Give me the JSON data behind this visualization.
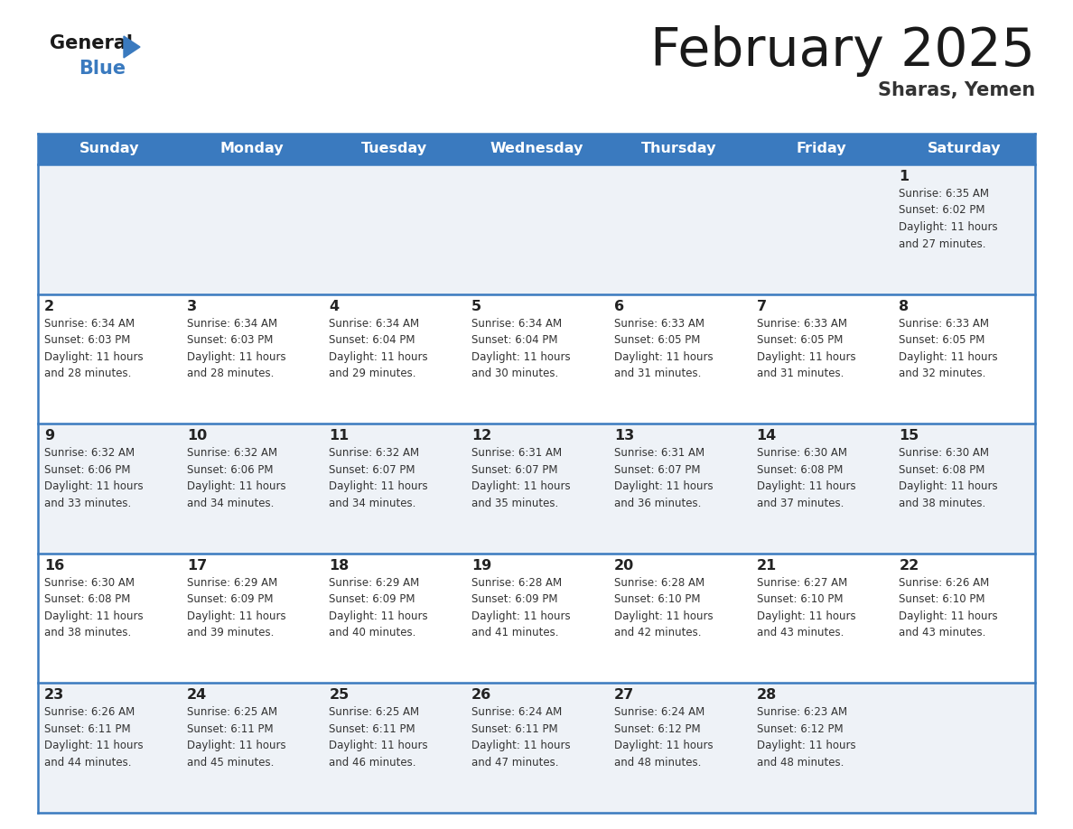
{
  "title": "February 2025",
  "subtitle": "Sharas, Yemen",
  "header_bg_color": "#3a7abf",
  "header_text_color": "#ffffff",
  "cell_bg_odd": "#eef2f7",
  "cell_bg_even": "#ffffff",
  "days_of_week": [
    "Sunday",
    "Monday",
    "Tuesday",
    "Wednesday",
    "Thursday",
    "Friday",
    "Saturday"
  ],
  "title_color": "#1a1a1a",
  "subtitle_color": "#333333",
  "day_num_color": "#222222",
  "cell_text_color": "#333333",
  "line_color": "#3a7abf",
  "logo_general_color": "#1a1a1a",
  "logo_blue_color": "#3a7abf",
  "logo_triangle_color": "#3a7abf",
  "calendar_data": [
    [
      {
        "day": null,
        "info": null
      },
      {
        "day": null,
        "info": null
      },
      {
        "day": null,
        "info": null
      },
      {
        "day": null,
        "info": null
      },
      {
        "day": null,
        "info": null
      },
      {
        "day": null,
        "info": null
      },
      {
        "day": 1,
        "info": "Sunrise: 6:35 AM\nSunset: 6:02 PM\nDaylight: 11 hours\nand 27 minutes."
      }
    ],
    [
      {
        "day": 2,
        "info": "Sunrise: 6:34 AM\nSunset: 6:03 PM\nDaylight: 11 hours\nand 28 minutes."
      },
      {
        "day": 3,
        "info": "Sunrise: 6:34 AM\nSunset: 6:03 PM\nDaylight: 11 hours\nand 28 minutes."
      },
      {
        "day": 4,
        "info": "Sunrise: 6:34 AM\nSunset: 6:04 PM\nDaylight: 11 hours\nand 29 minutes."
      },
      {
        "day": 5,
        "info": "Sunrise: 6:34 AM\nSunset: 6:04 PM\nDaylight: 11 hours\nand 30 minutes."
      },
      {
        "day": 6,
        "info": "Sunrise: 6:33 AM\nSunset: 6:05 PM\nDaylight: 11 hours\nand 31 minutes."
      },
      {
        "day": 7,
        "info": "Sunrise: 6:33 AM\nSunset: 6:05 PM\nDaylight: 11 hours\nand 31 minutes."
      },
      {
        "day": 8,
        "info": "Sunrise: 6:33 AM\nSunset: 6:05 PM\nDaylight: 11 hours\nand 32 minutes."
      }
    ],
    [
      {
        "day": 9,
        "info": "Sunrise: 6:32 AM\nSunset: 6:06 PM\nDaylight: 11 hours\nand 33 minutes."
      },
      {
        "day": 10,
        "info": "Sunrise: 6:32 AM\nSunset: 6:06 PM\nDaylight: 11 hours\nand 34 minutes."
      },
      {
        "day": 11,
        "info": "Sunrise: 6:32 AM\nSunset: 6:07 PM\nDaylight: 11 hours\nand 34 minutes."
      },
      {
        "day": 12,
        "info": "Sunrise: 6:31 AM\nSunset: 6:07 PM\nDaylight: 11 hours\nand 35 minutes."
      },
      {
        "day": 13,
        "info": "Sunrise: 6:31 AM\nSunset: 6:07 PM\nDaylight: 11 hours\nand 36 minutes."
      },
      {
        "day": 14,
        "info": "Sunrise: 6:30 AM\nSunset: 6:08 PM\nDaylight: 11 hours\nand 37 minutes."
      },
      {
        "day": 15,
        "info": "Sunrise: 6:30 AM\nSunset: 6:08 PM\nDaylight: 11 hours\nand 38 minutes."
      }
    ],
    [
      {
        "day": 16,
        "info": "Sunrise: 6:30 AM\nSunset: 6:08 PM\nDaylight: 11 hours\nand 38 minutes."
      },
      {
        "day": 17,
        "info": "Sunrise: 6:29 AM\nSunset: 6:09 PM\nDaylight: 11 hours\nand 39 minutes."
      },
      {
        "day": 18,
        "info": "Sunrise: 6:29 AM\nSunset: 6:09 PM\nDaylight: 11 hours\nand 40 minutes."
      },
      {
        "day": 19,
        "info": "Sunrise: 6:28 AM\nSunset: 6:09 PM\nDaylight: 11 hours\nand 41 minutes."
      },
      {
        "day": 20,
        "info": "Sunrise: 6:28 AM\nSunset: 6:10 PM\nDaylight: 11 hours\nand 42 minutes."
      },
      {
        "day": 21,
        "info": "Sunrise: 6:27 AM\nSunset: 6:10 PM\nDaylight: 11 hours\nand 43 minutes."
      },
      {
        "day": 22,
        "info": "Sunrise: 6:26 AM\nSunset: 6:10 PM\nDaylight: 11 hours\nand 43 minutes."
      }
    ],
    [
      {
        "day": 23,
        "info": "Sunrise: 6:26 AM\nSunset: 6:11 PM\nDaylight: 11 hours\nand 44 minutes."
      },
      {
        "day": 24,
        "info": "Sunrise: 6:25 AM\nSunset: 6:11 PM\nDaylight: 11 hours\nand 45 minutes."
      },
      {
        "day": 25,
        "info": "Sunrise: 6:25 AM\nSunset: 6:11 PM\nDaylight: 11 hours\nand 46 minutes."
      },
      {
        "day": 26,
        "info": "Sunrise: 6:24 AM\nSunset: 6:11 PM\nDaylight: 11 hours\nand 47 minutes."
      },
      {
        "day": 27,
        "info": "Sunrise: 6:24 AM\nSunset: 6:12 PM\nDaylight: 11 hours\nand 48 minutes."
      },
      {
        "day": 28,
        "info": "Sunrise: 6:23 AM\nSunset: 6:12 PM\nDaylight: 11 hours\nand 48 minutes."
      },
      {
        "day": null,
        "info": null
      }
    ]
  ]
}
